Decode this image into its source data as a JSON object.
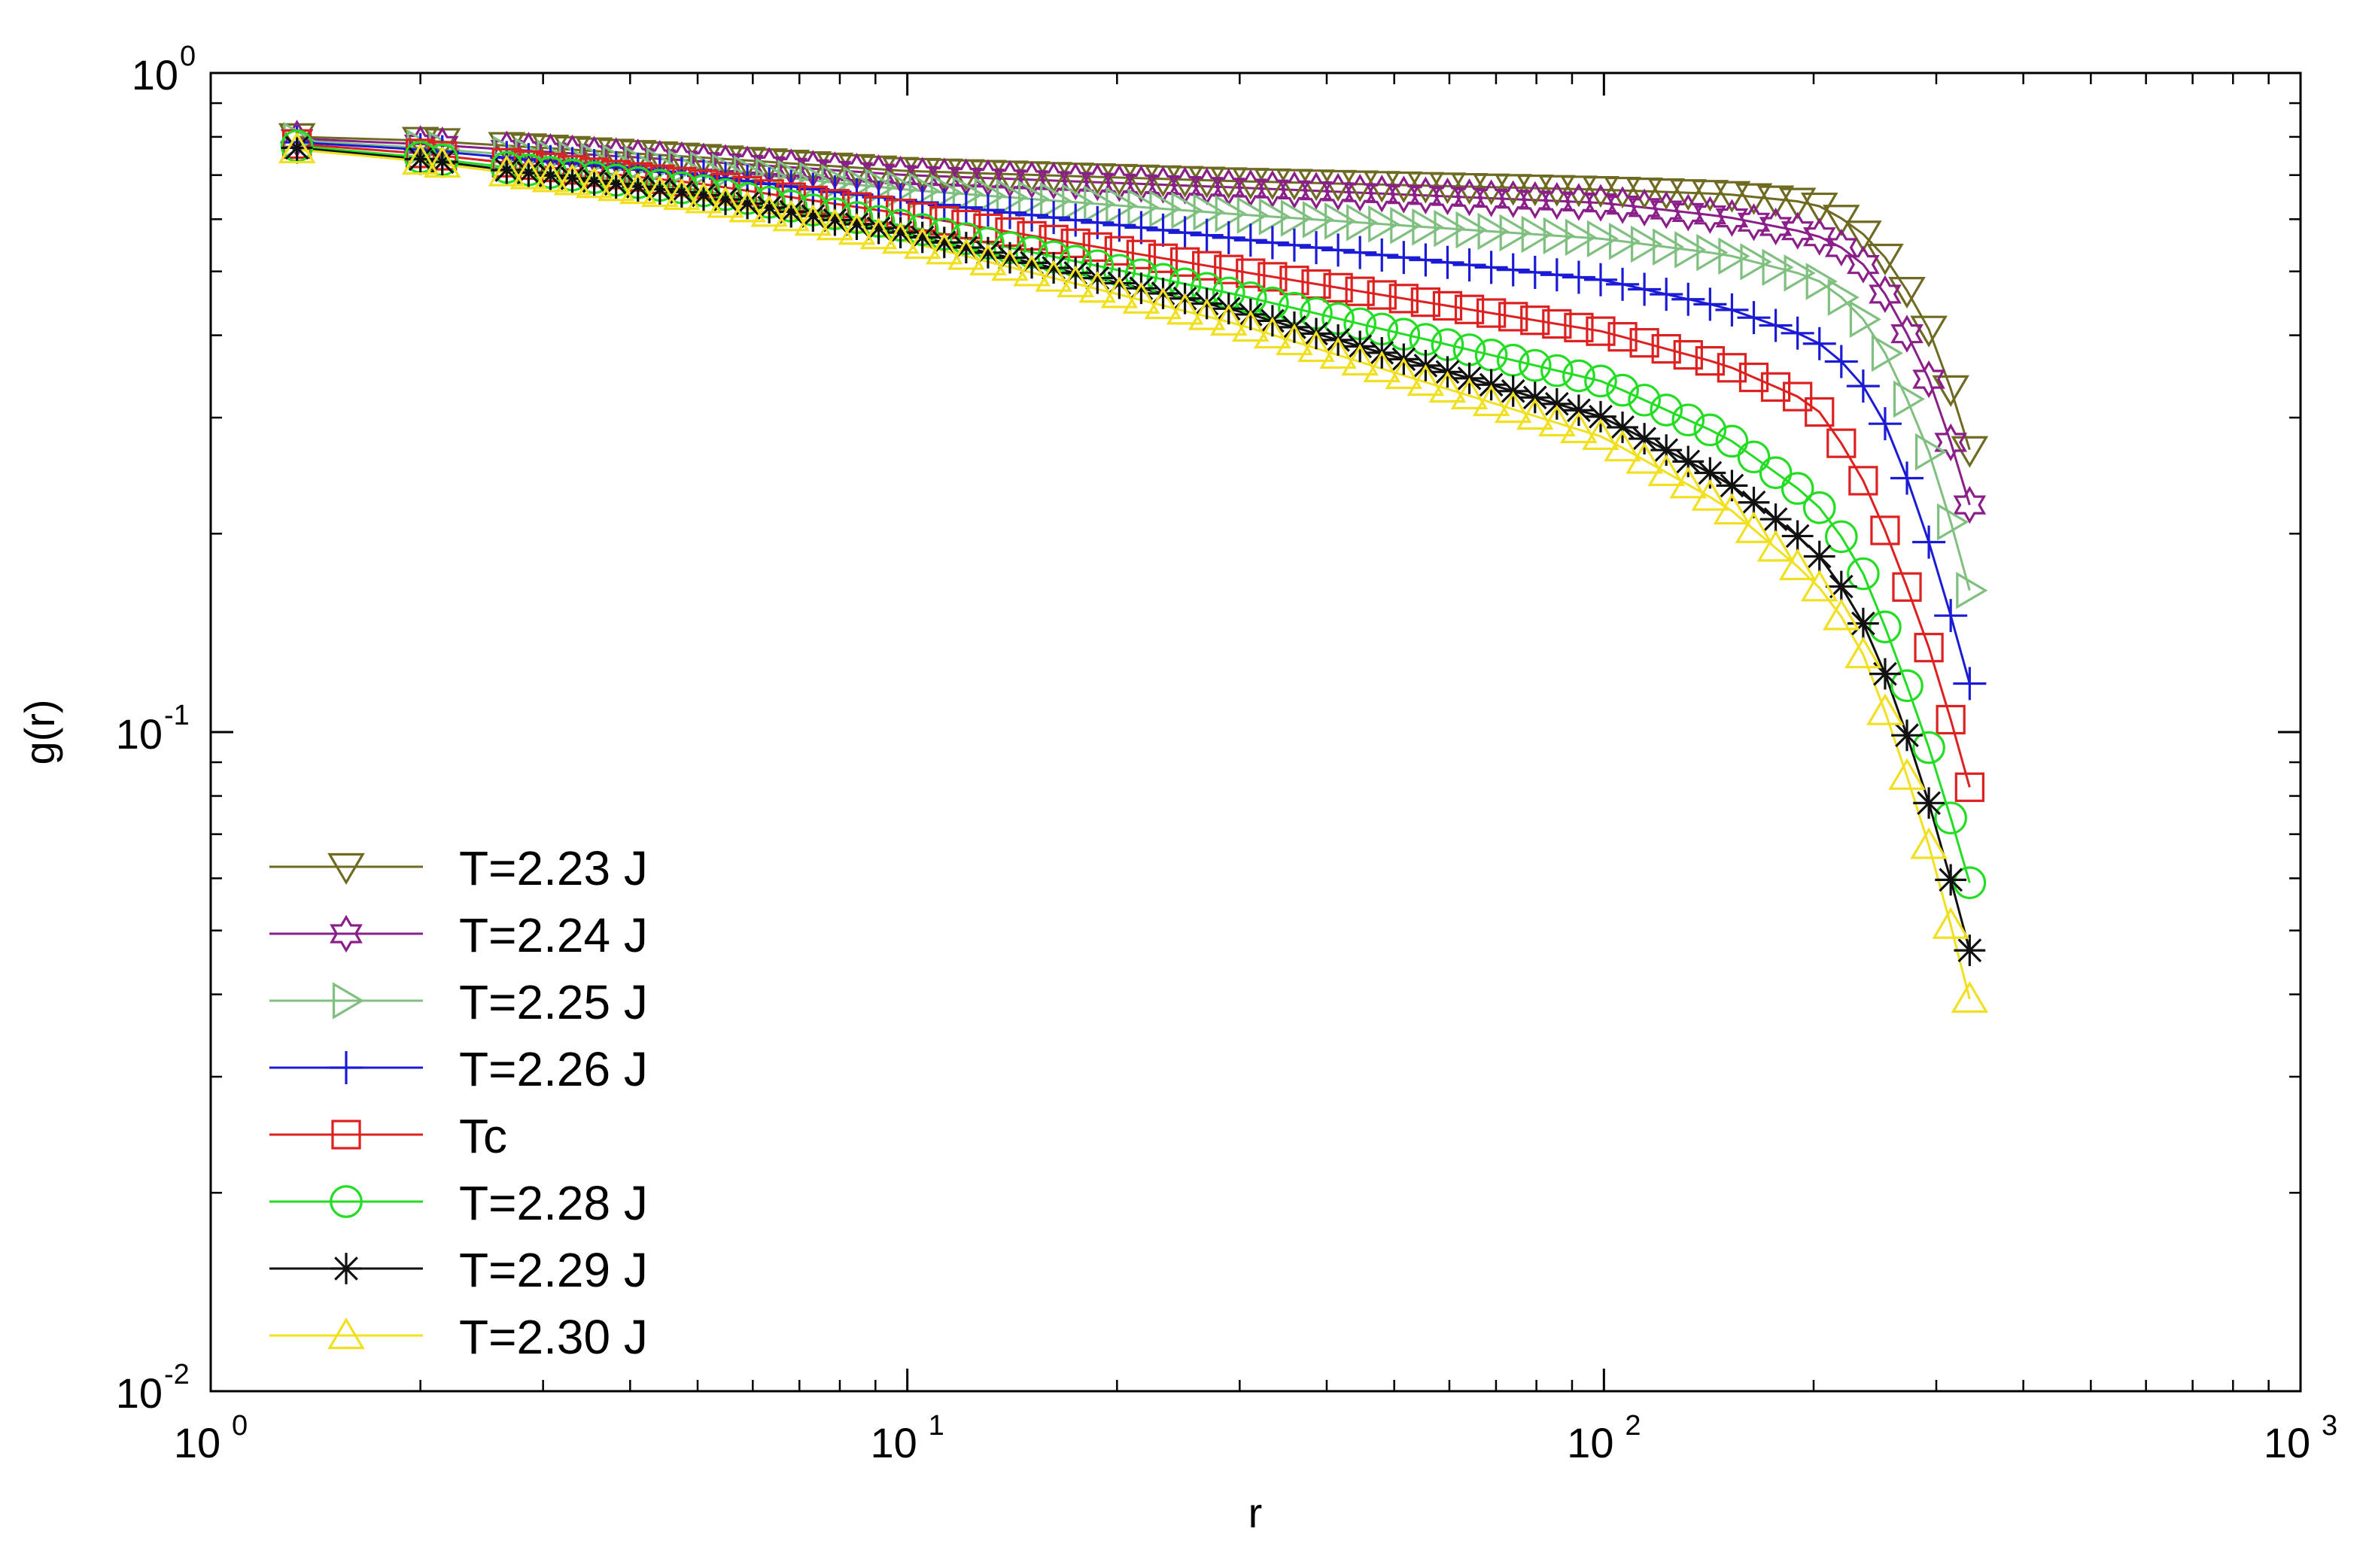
{
  "chart_data": {
    "type": "line",
    "xscale": "log",
    "yscale": "log",
    "xlim": [
      1,
      1000
    ],
    "ylim": [
      0.01,
      1
    ],
    "xlabel": "r",
    "ylabel": "g(r)",
    "x_ticks": [
      {
        "base": "10",
        "exp": "0"
      },
      {
        "base": "10",
        "exp": "1"
      },
      {
        "base": "10",
        "exp": "2"
      },
      {
        "base": "10",
        "exp": "3"
      }
    ],
    "y_ticks": [
      {
        "base": "10",
        "exp": "-2"
      },
      {
        "base": "10",
        "exp": "-1"
      },
      {
        "base": "10",
        "exp": "0"
      }
    ],
    "legend_position": "bottom-left",
    "series": [
      {
        "name": "T=2.23 J",
        "color": "#6f6a22",
        "marker": "triangle-down",
        "anchors": [
          [
            1.33,
            0.8
          ],
          [
            2,
            0.79
          ],
          [
            5,
            0.745
          ],
          [
            10,
            0.71
          ],
          [
            30,
            0.685
          ],
          [
            100,
            0.665
          ],
          [
            150,
            0.655
          ],
          [
            200,
            0.635
          ],
          [
            230,
            0.585
          ],
          [
            260,
            0.51
          ],
          [
            300,
            0.39
          ],
          [
            340,
            0.255
          ]
        ]
      },
      {
        "name": "T=2.24 J",
        "color": "#8a1f8a",
        "marker": "star6",
        "anchors": [
          [
            1.33,
            0.795
          ],
          [
            2,
            0.78
          ],
          [
            5,
            0.735
          ],
          [
            10,
            0.7
          ],
          [
            30,
            0.67
          ],
          [
            100,
            0.635
          ],
          [
            150,
            0.605
          ],
          [
            200,
            0.57
          ],
          [
            230,
            0.53
          ],
          [
            260,
            0.445
          ],
          [
            300,
            0.325
          ],
          [
            340,
            0.21
          ]
        ]
      },
      {
        "name": "T=2.25 J",
        "color": "#7fbf7f",
        "marker": "triangle-right",
        "anchors": [
          [
            1.33,
            0.79
          ],
          [
            2,
            0.77
          ],
          [
            5,
            0.715
          ],
          [
            10,
            0.665
          ],
          [
            30,
            0.61
          ],
          [
            100,
            0.56
          ],
          [
            150,
            0.53
          ],
          [
            200,
            0.49
          ],
          [
            230,
            0.44
          ],
          [
            260,
            0.36
          ],
          [
            300,
            0.25
          ],
          [
            340,
            0.155
          ]
        ]
      },
      {
        "name": "T=2.26 J",
        "color": "#1b1bd6",
        "marker": "plus",
        "anchors": [
          [
            1.33,
            0.785
          ],
          [
            2,
            0.765
          ],
          [
            5,
            0.7
          ],
          [
            10,
            0.64
          ],
          [
            30,
            0.56
          ],
          [
            100,
            0.485
          ],
          [
            150,
            0.44
          ],
          [
            200,
            0.395
          ],
          [
            230,
            0.35
          ],
          [
            260,
            0.28
          ],
          [
            300,
            0.18
          ],
          [
            340,
            0.112
          ]
        ]
      },
      {
        "name": "Tc",
        "color": "#dd2020",
        "marker": "square",
        "anchors": [
          [
            1.33,
            0.78
          ],
          [
            2,
            0.755
          ],
          [
            5,
            0.68
          ],
          [
            10,
            0.61
          ],
          [
            30,
            0.5
          ],
          [
            100,
            0.405
          ],
          [
            150,
            0.36
          ],
          [
            200,
            0.315
          ],
          [
            230,
            0.255
          ],
          [
            260,
            0.19
          ],
          [
            300,
            0.125
          ],
          [
            340,
            0.078
          ]
        ]
      },
      {
        "name": "T=2.28 J",
        "color": "#22dd22",
        "marker": "circle",
        "anchors": [
          [
            1.33,
            0.775
          ],
          [
            2,
            0.745
          ],
          [
            5,
            0.665
          ],
          [
            10,
            0.585
          ],
          [
            30,
            0.46
          ],
          [
            100,
            0.34
          ],
          [
            150,
            0.28
          ],
          [
            200,
            0.225
          ],
          [
            230,
            0.185
          ],
          [
            260,
            0.135
          ],
          [
            300,
            0.088
          ],
          [
            340,
            0.056
          ]
        ]
      },
      {
        "name": "T=2.29 J",
        "color": "#111111",
        "marker": "asterisk",
        "anchors": [
          [
            1.33,
            0.77
          ],
          [
            2,
            0.74
          ],
          [
            5,
            0.655
          ],
          [
            10,
            0.57
          ],
          [
            30,
            0.435
          ],
          [
            100,
            0.3
          ],
          [
            150,
            0.24
          ],
          [
            200,
            0.19
          ],
          [
            230,
            0.155
          ],
          [
            260,
            0.115
          ],
          [
            300,
            0.072
          ],
          [
            340,
            0.044
          ]
        ]
      },
      {
        "name": "T=2.30 J",
        "color": "#f0e020",
        "marker": "triangle-up",
        "anchors": [
          [
            1.33,
            0.765
          ],
          [
            2,
            0.735
          ],
          [
            5,
            0.645
          ],
          [
            10,
            0.555
          ],
          [
            30,
            0.415
          ],
          [
            100,
            0.28
          ],
          [
            150,
            0.22
          ],
          [
            200,
            0.17
          ],
          [
            230,
            0.14
          ],
          [
            260,
            0.1
          ],
          [
            300,
            0.062
          ],
          [
            340,
            0.037
          ]
        ]
      }
    ]
  }
}
